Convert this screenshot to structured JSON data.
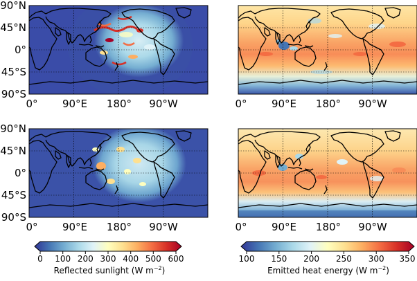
{
  "panels": [
    {
      "id": "top-left",
      "field": "reflected"
    },
    {
      "id": "top-right",
      "field": "emitted"
    },
    {
      "id": "bottom-left",
      "field": "reflected"
    },
    {
      "id": "bottom-right",
      "field": "emitted"
    }
  ],
  "axes": {
    "lat_labels": [
      "90°N",
      "45°N",
      "0°",
      "45°S",
      "90°S"
    ],
    "lon_labels": [
      "0°",
      "90°E",
      "180°",
      "90°W"
    ]
  },
  "colorbars": {
    "reflected": {
      "ticks": [
        "0",
        "100",
        "200",
        "300",
        "400",
        "500",
        "600"
      ],
      "label": "Reflected sunlight (W m",
      "unit_exp": "−2",
      "label_close": ")"
    },
    "emitted": {
      "ticks": [
        "100",
        "150",
        "200",
        "250",
        "300",
        "350"
      ],
      "label": "Emitted heat energy (W m",
      "unit_exp": "−2",
      "label_close": ")"
    }
  },
  "colors": {
    "cmap": [
      "#313695",
      "#4575b4",
      "#74add1",
      "#abd9e9",
      "#e0f3f8",
      "#ffffbf",
      "#fee090",
      "#fdae61",
      "#f46d43",
      "#d73027",
      "#a50026"
    ],
    "coast": "#000000"
  }
}
